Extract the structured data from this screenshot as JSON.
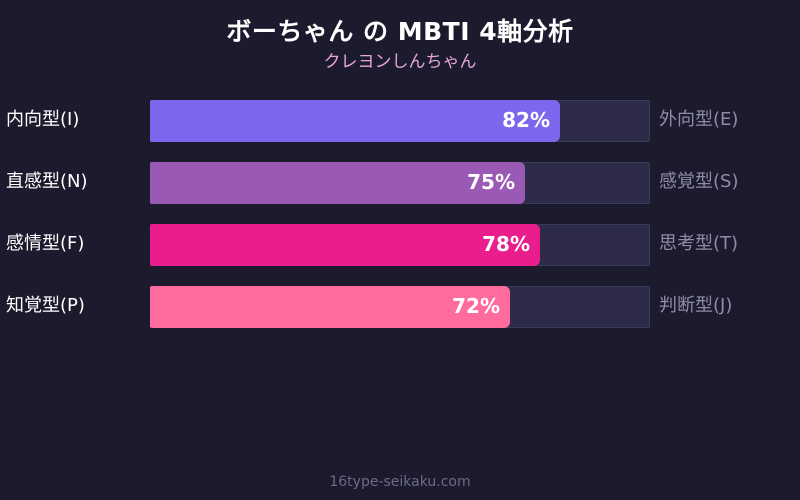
{
  "header": {
    "title": "ボーちゃん の MBTI 4軸分析",
    "subtitle": "クレヨンしんちゃん"
  },
  "footer": {
    "text": "16type-seikaku.com"
  },
  "chart_data": {
    "type": "bar",
    "orientation": "horizontal",
    "xlim": [
      0,
      100
    ],
    "value_suffix": "%",
    "rows": [
      {
        "left_label": "内向型(I)",
        "right_label": "外向型(E)",
        "value": 82,
        "value_label": "82%",
        "color": "#7b68ee"
      },
      {
        "left_label": "直感型(N)",
        "right_label": "感覚型(S)",
        "value": 75,
        "value_label": "75%",
        "color": "#9b59b6"
      },
      {
        "left_label": "感情型(F)",
        "right_label": "思考型(T)",
        "value": 78,
        "value_label": "78%",
        "color": "#e91e8c"
      },
      {
        "left_label": "知覚型(P)",
        "right_label": "判断型(J)",
        "value": 72,
        "value_label": "72%",
        "color": "#ff6b9d"
      }
    ],
    "track_color": "#2d2b48"
  }
}
